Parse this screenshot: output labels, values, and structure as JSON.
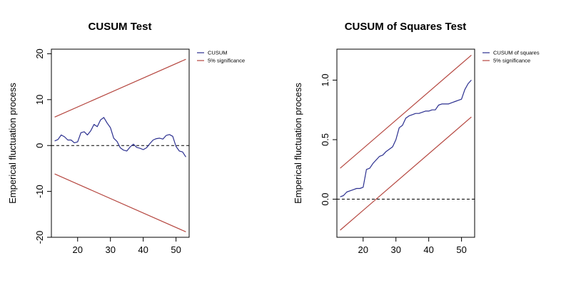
{
  "chart_data": [
    {
      "type": "line",
      "title": "CUSUM Test",
      "xlabel": "",
      "ylabel": "Emperical fluctuation process",
      "xlim": [
        12,
        54
      ],
      "ylim": [
        -20,
        21
      ],
      "xticks": [
        20,
        30,
        40,
        50
      ],
      "xtick_labels": [
        "20",
        "30",
        "40",
        "50"
      ],
      "yticks": [
        -20,
        -10,
        0,
        10,
        20
      ],
      "ytick_labels": [
        "-20",
        "-10",
        "0",
        "10",
        "20"
      ],
      "grid": false,
      "legend": {
        "placement": "top-right",
        "entries": [
          {
            "name": "CUSUM",
            "color": "#2b2f8f"
          },
          {
            "name": "5% significance",
            "color": "#b5463f"
          }
        ]
      },
      "reference_line": {
        "y": 0,
        "style": "dashed",
        "color": "#000000"
      },
      "series": [
        {
          "name": "CUSUM",
          "color": "#2b2f8f",
          "x": [
            13,
            14,
            15,
            16,
            17,
            18,
            19,
            20,
            21,
            22,
            23,
            24,
            25,
            26,
            27,
            28,
            29,
            30,
            31,
            32,
            33,
            34,
            35,
            36,
            37,
            38,
            39,
            40,
            41,
            42,
            43,
            44,
            45,
            46,
            47,
            48,
            49,
            50,
            51,
            52,
            53
          ],
          "y": [
            1.0,
            1.3,
            2.3,
            1.9,
            1.2,
            1.2,
            0.6,
            0.8,
            2.8,
            3.0,
            2.3,
            3.2,
            4.6,
            4.1,
            5.6,
            6.1,
            4.9,
            3.9,
            1.6,
            0.9,
            -0.5,
            -1.0,
            -1.2,
            -0.3,
            0.3,
            -0.4,
            -0.6,
            -0.9,
            -0.5,
            0.4,
            1.2,
            1.5,
            1.6,
            1.4,
            2.2,
            2.4,
            2.0,
            -0.2,
            -1.2,
            -1.4,
            -2.5
          ]
        },
        {
          "name": "5% significance",
          "color": "#b5463f",
          "x": [
            13,
            53
          ],
          "y": [
            6.2,
            18.8
          ]
        },
        {
          "name": "5% significance",
          "color": "#b5463f",
          "x": [
            13,
            53
          ],
          "y": [
            -6.2,
            -18.8
          ]
        }
      ]
    },
    {
      "type": "line",
      "title": "CUSUM of Squares Test",
      "xlabel": "",
      "ylabel": "Emperical fluctuation process",
      "xlim": [
        12,
        54
      ],
      "ylim": [
        -0.32,
        1.26
      ],
      "xticks": [
        20,
        30,
        40,
        50
      ],
      "xtick_labels": [
        "20",
        "30",
        "40",
        "50"
      ],
      "yticks": [
        0.0,
        0.5,
        1.0
      ],
      "ytick_labels": [
        "0.0",
        "0.5",
        "1.0"
      ],
      "grid": false,
      "legend": {
        "placement": "top-right",
        "entries": [
          {
            "name": "CUSUM of squares",
            "color": "#2b2f8f"
          },
          {
            "name": "5% significance",
            "color": "#b5463f"
          }
        ]
      },
      "reference_line": {
        "y": 0,
        "style": "dashed",
        "color": "#000000"
      },
      "series": [
        {
          "name": "CUSUM of squares",
          "color": "#2b2f8f",
          "x": [
            13,
            14,
            15,
            16,
            17,
            18,
            19,
            20,
            21,
            22,
            23,
            24,
            25,
            26,
            27,
            28,
            29,
            30,
            31,
            32,
            33,
            34,
            35,
            36,
            37,
            38,
            39,
            40,
            41,
            42,
            43,
            44,
            45,
            46,
            47,
            48,
            49,
            50,
            51,
            52,
            53
          ],
          "y": [
            0.02,
            0.03,
            0.06,
            0.07,
            0.08,
            0.09,
            0.09,
            0.1,
            0.25,
            0.26,
            0.3,
            0.33,
            0.36,
            0.37,
            0.4,
            0.42,
            0.44,
            0.5,
            0.6,
            0.62,
            0.68,
            0.7,
            0.71,
            0.72,
            0.72,
            0.73,
            0.74,
            0.74,
            0.75,
            0.75,
            0.79,
            0.8,
            0.8,
            0.8,
            0.81,
            0.82,
            0.83,
            0.84,
            0.92,
            0.97,
            1.0
          ]
        },
        {
          "name": "5% significance",
          "color": "#b5463f",
          "x": [
            13,
            53
          ],
          "y": [
            0.26,
            1.21
          ]
        },
        {
          "name": "5% significance",
          "color": "#b5463f",
          "x": [
            13,
            53
          ],
          "y": [
            -0.26,
            0.69
          ]
        }
      ]
    }
  ]
}
